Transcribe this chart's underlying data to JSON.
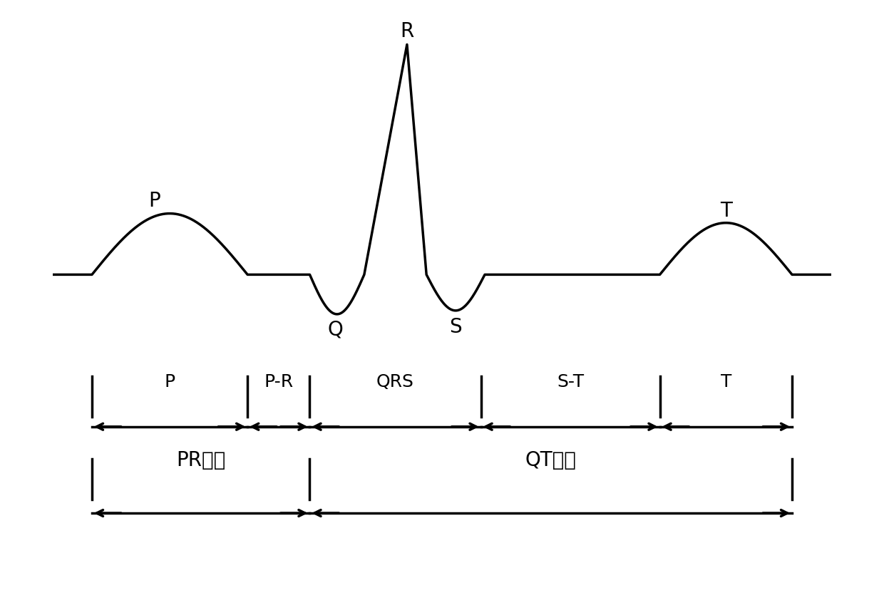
{
  "background_color": "#ffffff",
  "line_color": "#000000",
  "line_width": 2.5,
  "ecg_label_fontsize": 20,
  "interval_label_fontsize": 18,
  "chinese_label_fontsize": 20,
  "segment_labels": [
    "P",
    "P-R",
    "QRS",
    "S-T",
    "T"
  ],
  "interval_labels": [
    "PR间期",
    "QT间期"
  ],
  "ecg_xlim": [
    0,
    10
  ],
  "ecg_ylim": [
    -1.1,
    3.5
  ],
  "int_xlim": [
    0,
    10
  ],
  "int_ylim": [
    -1.0,
    1.0
  ],
  "b0": 0.5,
  "b1": 2.5,
  "b2": 3.3,
  "b3": 5.5,
  "b4": 7.8,
  "b5": 9.5
}
